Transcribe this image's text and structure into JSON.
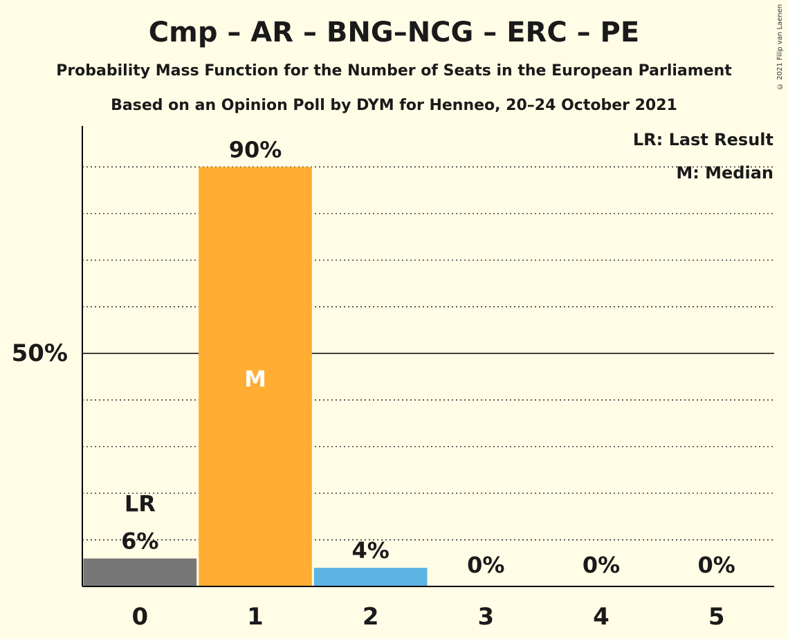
{
  "title": "Cmp – AR – BNG–NCG – ERC – PE",
  "subtitle": "Probability Mass Function for the Number of Seats in the European Parliament",
  "subtitle2": "Based on an Opinion Poll by DYM for Henneo, 20–24 October 2021",
  "copyright": "© 2021 Filip van Laenen",
  "legend": {
    "lr": "LR: Last Result",
    "median": "M: Median"
  },
  "chart_data": {
    "type": "bar",
    "categories": [
      "0",
      "1",
      "2",
      "3",
      "4",
      "5"
    ],
    "values": [
      6,
      90,
      4,
      0,
      0,
      0
    ],
    "value_labels": [
      "6%",
      "90%",
      "4%",
      "0%",
      "0%",
      "0%"
    ],
    "bar_colors": [
      "#777777",
      "#FFAE33",
      "#5DB3E2",
      "#5DB3E2",
      "#5DB3E2",
      "#5DB3E2"
    ],
    "ylim": [
      0,
      100
    ],
    "y_tick_label": "50%",
    "y_tick_value": 50,
    "grid": true,
    "last_result_index": 0,
    "last_result_marker": "LR",
    "median_index": 1,
    "median_marker": "M"
  }
}
